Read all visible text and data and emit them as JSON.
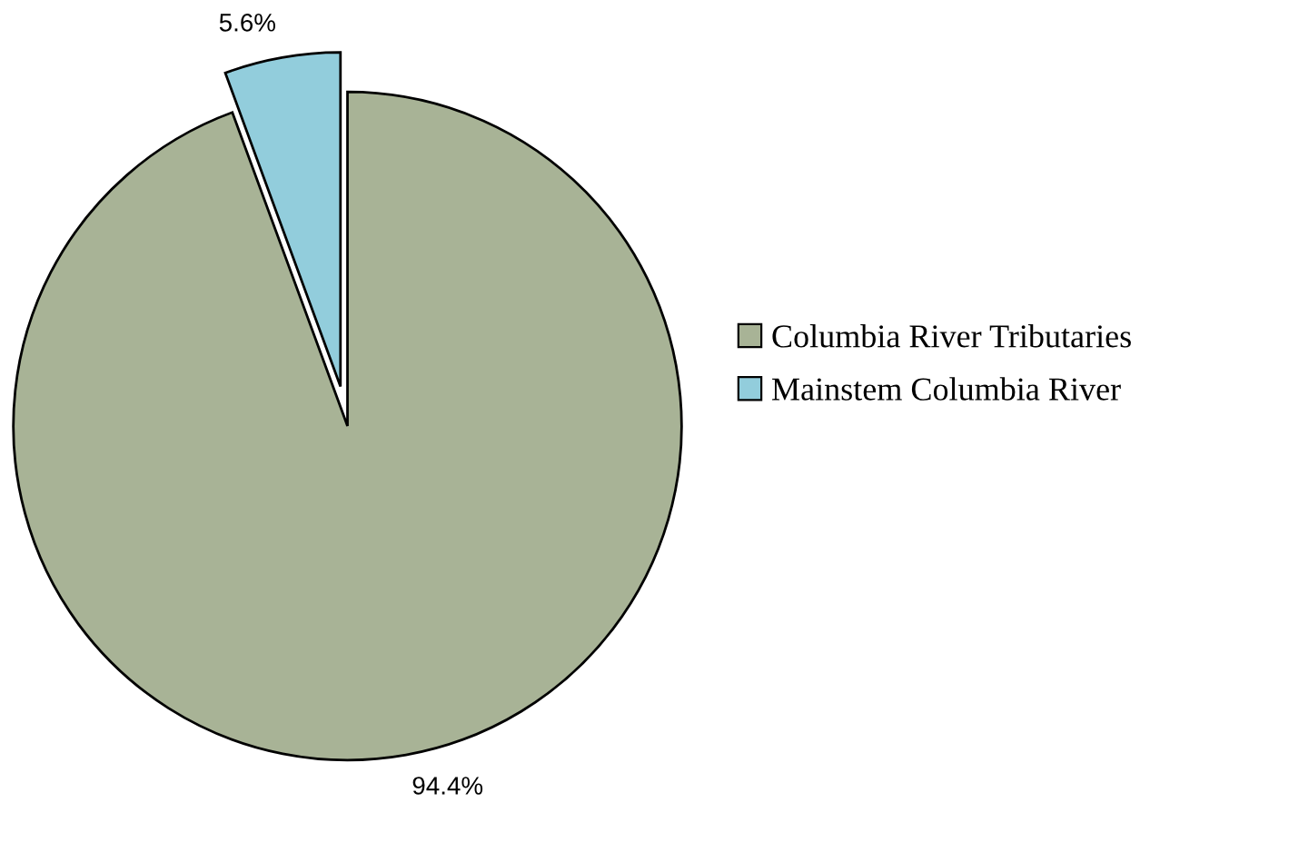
{
  "chart_data": {
    "type": "pie",
    "categories": [
      "Columbia River Tributaries",
      "Mainstem Columbia River"
    ],
    "values": [
      94.4,
      5.6
    ],
    "colors": [
      "#a8b396",
      "#92cddc"
    ],
    "value_labels": [
      "94.4%",
      "5.6%"
    ],
    "legend": "right"
  }
}
